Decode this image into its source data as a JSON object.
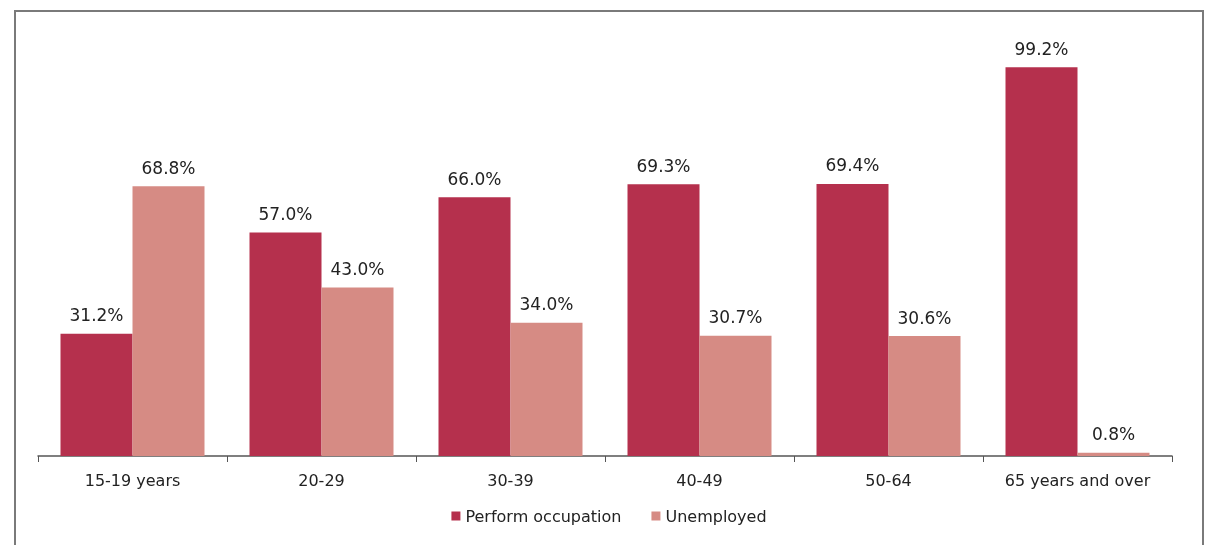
{
  "chart_data": {
    "type": "bar",
    "categories": [
      "15-19 years",
      "20-29",
      "30-39",
      "40-49",
      "50-64",
      "65 years and over"
    ],
    "series": [
      {
        "name": "Perform occupation",
        "color": "#b5304d",
        "values": [
          31.2,
          57.0,
          66.0,
          69.3,
          69.4,
          99.2
        ],
        "value_labels": [
          "31.2%",
          "57.0%",
          "66.0%",
          "69.3%",
          "69.4%",
          "99.2%"
        ]
      },
      {
        "name": "Unemployed",
        "color": "#d68b84",
        "values": [
          68.8,
          43.0,
          34.0,
          30.7,
          30.6,
          0.8
        ],
        "value_labels": [
          "68.8%",
          "43.0%",
          "34.0%",
          "30.7%",
          "30.6%",
          "0.8%"
        ]
      }
    ],
    "legend": "bottom"
  }
}
